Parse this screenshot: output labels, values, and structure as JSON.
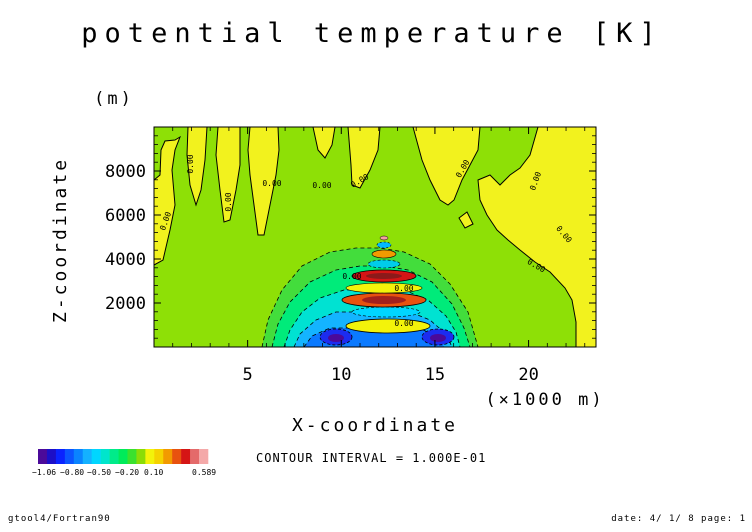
{
  "title": "potential temperature [K]",
  "chart_data": {
    "type": "heatmap",
    "title": "potential temperature [K]",
    "xlabel": "X-coordinate",
    "xunit": "(×1000 m)",
    "ylabel": "Z-coordinate",
    "yunit": "(m)",
    "xlim": [
      0,
      23.6
    ],
    "ylim": [
      0,
      10000
    ],
    "xticks": [
      5,
      10,
      15,
      20
    ],
    "yticks": [
      2000,
      4000,
      6000,
      8000
    ],
    "contour_interval_text": "CONTOUR INTERVAL = 1.000E-01",
    "contour_labels": [
      "0.00",
      "0.00",
      "0.00",
      "0.00",
      "0.00",
      "0.00",
      "0.00",
      "0.00",
      "0.00",
      "0.00",
      "0.00",
      "0.00",
      "0.00"
    ],
    "features": [
      {
        "kind": "warm plume",
        "x_range": [
          0.3,
          1.6
        ],
        "z_range": [
          4000,
          9800
        ],
        "value": 0.05
      },
      {
        "kind": "warm plume",
        "x_range": [
          2.2,
          3.3
        ],
        "z_range": [
          7000,
          9800
        ],
        "value": 0.05
      },
      {
        "kind": "warm plume",
        "x_range": [
          4.0,
          5.2
        ],
        "z_range": [
          5500,
          9800
        ],
        "value": 0.05
      },
      {
        "kind": "warm plume",
        "x_range": [
          5.4,
          6.9
        ],
        "z_range": [
          5000,
          9800
        ],
        "value": 0.05
      },
      {
        "kind": "warm plume",
        "x_range": [
          7.8,
          9.0
        ],
        "z_range": [
          7800,
          9800
        ],
        "value": 0.05
      },
      {
        "kind": "warm plume",
        "x_range": [
          10.3,
          12.0
        ],
        "z_range": [
          6700,
          9800
        ],
        "value": 0.05
      },
      {
        "kind": "warm plume",
        "x_range": [
          13.5,
          17.0
        ],
        "z_range": [
          6000,
          9800
        ],
        "value": 0.05
      },
      {
        "kind": "warm plume",
        "x_range": [
          17.5,
          23.6
        ],
        "z_range": [
          200,
          9800
        ],
        "value": 0.05
      },
      {
        "kind": "cold dome",
        "x_center": 12.3,
        "z_top": 4900,
        "x_range": [
          6.5,
          18.0
        ],
        "min_value": -1.06
      },
      {
        "kind": "warm core",
        "x_center": 12.3,
        "z_center": 2800,
        "max_value": 0.589
      }
    ]
  },
  "colorbar": {
    "colors": [
      "#4b0a9a",
      "#1c0fc7",
      "#0a23ff",
      "#0b55ff",
      "#0a84ff",
      "#14b1ff",
      "#00d6ff",
      "#00e5cc",
      "#00eb8a",
      "#00eb5a",
      "#3ae12e",
      "#8bdc06",
      "#f3f30a",
      "#f5d200",
      "#f29a00",
      "#e8520f",
      "#d51515",
      "#e46a6a",
      "#f4a9a9"
    ],
    "tick_labels": [
      "−1.06",
      "−0.80",
      "−0.50",
      "−0.20",
      "0.10",
      "0.589"
    ]
  },
  "footer": {
    "left": "gtool4/Fortran90",
    "right": "date: 4/ 1/ 8 page: 1"
  }
}
